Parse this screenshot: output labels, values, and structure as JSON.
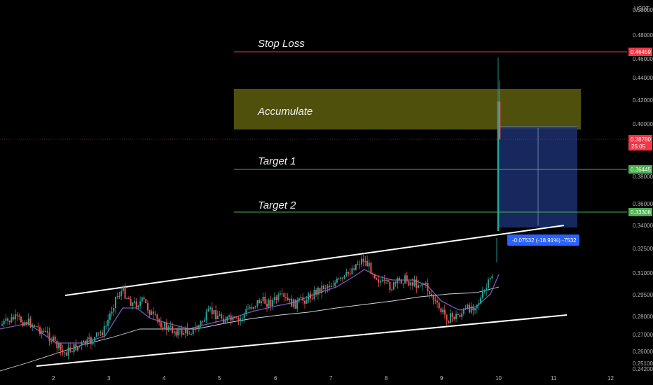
{
  "chart_data": {
    "type": "candlestick",
    "currency": "USDT",
    "y_axis_ticks": [
      "0.50000",
      "0.48000",
      "0.46000",
      "0.44000",
      "0.42000",
      "0.40000",
      "0.38000",
      "0.36000",
      "0.34000",
      "0.32500",
      "0.31000",
      "0.29500",
      "0.28000",
      "0.27000",
      "0.26000",
      "0.25100",
      "0.24200"
    ],
    "x_axis_ticks": [
      "2",
      "3",
      "4",
      "5",
      "6",
      "7",
      "8",
      "9",
      "10",
      "11",
      "12"
    ],
    "annotations": {
      "stop_loss": "Stop Loss",
      "accumulate": "Accumulate",
      "target1": "Target 1",
      "target2": "Target 2"
    },
    "price_tags": {
      "stop_loss": {
        "value": "0.46459",
        "color": "#f23645"
      },
      "current": {
        "value": "0.38780",
        "countdown": "25:05",
        "color": "#f23645"
      },
      "target1": {
        "value": "0.36445",
        "color": "#4caf50"
      },
      "target2": {
        "value": "0.33308",
        "color": "#4caf50"
      }
    },
    "measure_label": "-0.07532 (-18.91%) -7532",
    "colors": {
      "up": "#26a69a",
      "down": "#ef5350",
      "ma_fast": "#7e57c2",
      "ma_slow": "#d1d4dc",
      "zone": "#7a7a1a",
      "short_zone": "#1e3a8a",
      "measure": "#2962ff"
    }
  }
}
